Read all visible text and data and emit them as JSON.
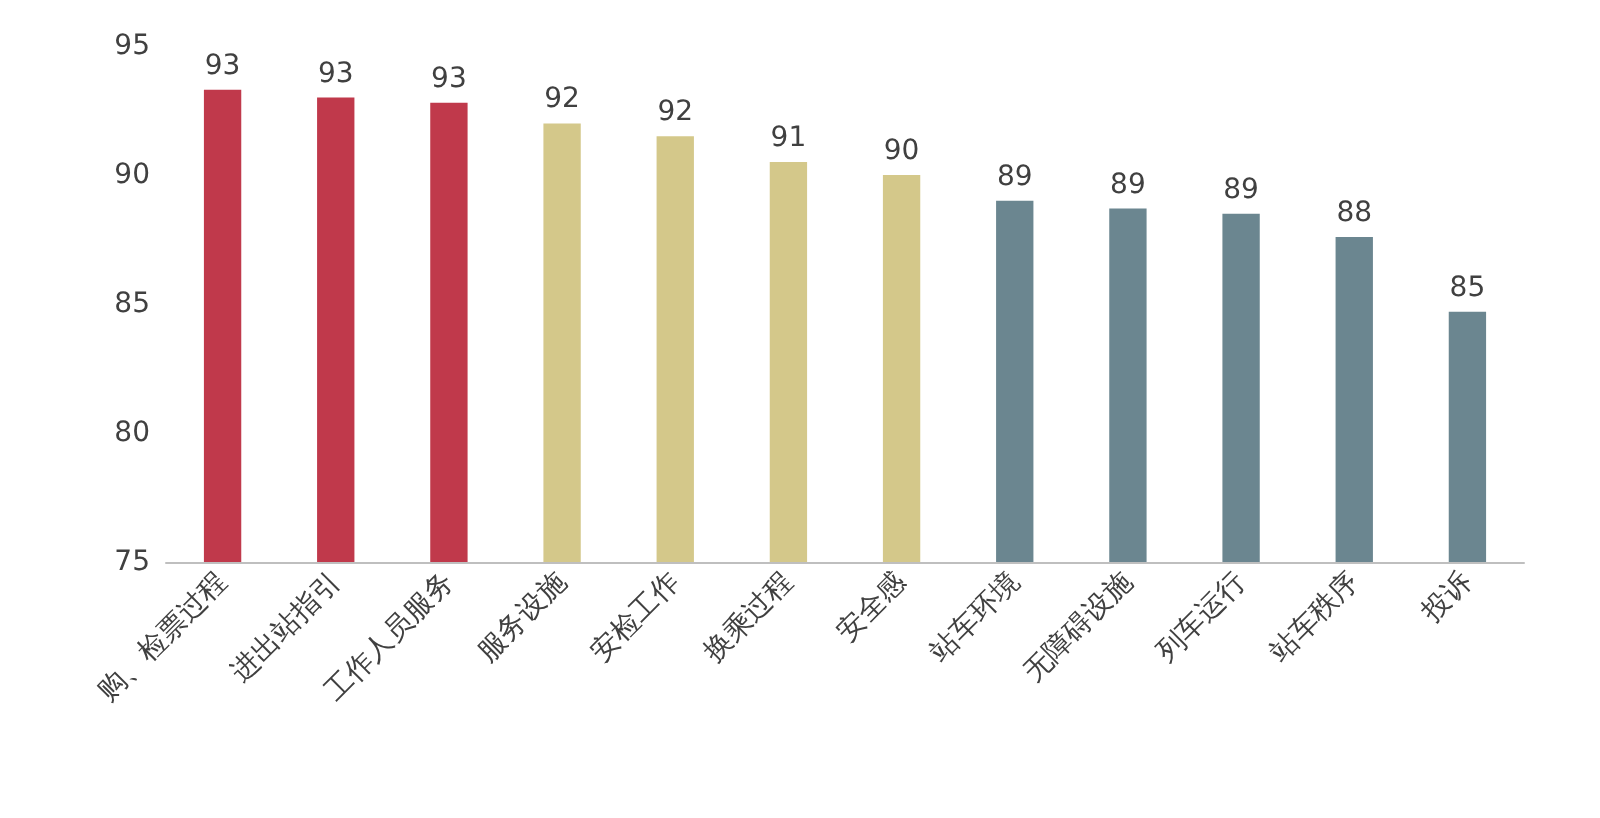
{
  "chart_data": {
    "type": "bar",
    "categories": [
      "购、检票过程",
      "进出站指引",
      "工作人员服务",
      "服务设施",
      "安检工作",
      "换乘过程",
      "安全感",
      "站车环境",
      "无障碍设施",
      "列车运行",
      "站车秩序",
      "投诉"
    ],
    "values": [
      93.3,
      93.0,
      92.8,
      92.0,
      91.5,
      90.5,
      90.0,
      89.0,
      88.7,
      88.5,
      87.6,
      84.7
    ],
    "colors": [
      "#c0394b",
      "#c0394b",
      "#c0394b",
      "#d4c88a",
      "#d4c88a",
      "#d4c88a",
      "#d4c88a",
      "#6b8690",
      "#6b8690",
      "#6b8690",
      "#6b8690",
      "#6b8690"
    ],
    "value_labels": [
      "93",
      "93",
      "93",
      "92",
      "92",
      "91",
      "90",
      "89",
      "89",
      "89",
      "88",
      "85"
    ],
    "ylim": [
      75,
      95
    ],
    "yticks": [
      75,
      80,
      85,
      90,
      95
    ],
    "grid": false
  }
}
